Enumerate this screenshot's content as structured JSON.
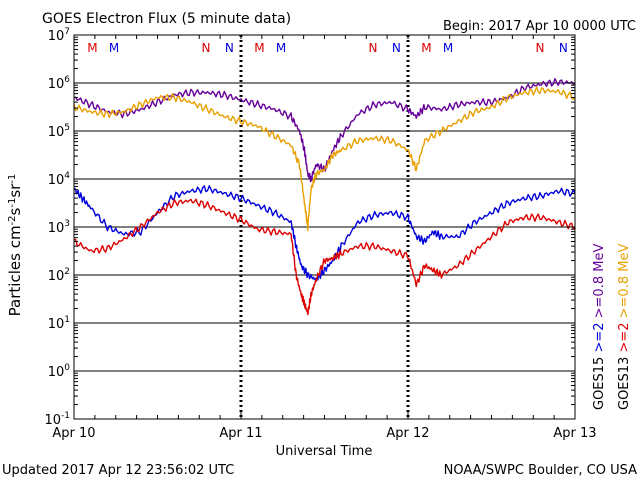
{
  "header": {
    "title": "GOES Electron Flux (5 minute data)",
    "begin": "Begin: 2017 Apr 10 0000 UTC"
  },
  "footer": {
    "updated": "Updated 2017 Apr 12 23:56:02 UTC",
    "credit": "NOAA/SWPC Boulder, CO USA"
  },
  "chart_data": {
    "type": "line",
    "title": "GOES Electron Flux (5 minute data)",
    "xlabel": "Universal Time",
    "ylabel": "Particles cm-2s-1sr-1",
    "y_scale": "log",
    "ylim_exponents": [
      -1,
      7
    ],
    "y_ticks": [
      {
        "base": "10",
        "exp": "7"
      },
      {
        "base": "10",
        "exp": "6"
      },
      {
        "base": "10",
        "exp": "5"
      },
      {
        "base": "10",
        "exp": "4"
      },
      {
        "base": "10",
        "exp": "3"
      },
      {
        "base": "10",
        "exp": "2"
      },
      {
        "base": "10",
        "exp": "1"
      },
      {
        "base": "10",
        "exp": "0"
      },
      {
        "base": "10",
        "exp": "-1"
      }
    ],
    "x_ticks": [
      "Apr 10",
      "Apr 11",
      "Apr 12",
      "Apr 13"
    ],
    "xlim_days": [
      0,
      3
    ],
    "threshold_exponent": 3,
    "grid": "horizontal decades",
    "marker_labels": [
      {
        "text": "M",
        "day": 0.11,
        "color": "#dd0000"
      },
      {
        "text": "M",
        "day": 0.24,
        "color": "#0000dd"
      },
      {
        "text": "N",
        "day": 0.79,
        "color": "#dd0000"
      },
      {
        "text": "N",
        "day": 0.93,
        "color": "#0000dd"
      },
      {
        "text": "M",
        "day": 1.11,
        "color": "#dd0000"
      },
      {
        "text": "M",
        "day": 1.24,
        "color": "#0000dd"
      },
      {
        "text": "N",
        "day": 1.79,
        "color": "#dd0000"
      },
      {
        "text": "N",
        "day": 1.93,
        "color": "#0000dd"
      },
      {
        "text": "M",
        "day": 2.11,
        "color": "#dd0000"
      },
      {
        "text": "M",
        "day": 2.24,
        "color": "#0000dd"
      },
      {
        "text": "N",
        "day": 2.79,
        "color": "#dd0000"
      },
      {
        "text": "N",
        "day": 2.93,
        "color": "#0000dd"
      }
    ],
    "legend": [
      {
        "sat": "GOES15",
        "pair": [
          {
            "text": ">=2",
            "color": "#0000dd"
          },
          {
            "text": ">=0.8 MeV",
            "color": "#660099"
          }
        ]
      },
      {
        "sat": "GOES13",
        "pair": [
          {
            "text": ">=2",
            "color": "#dd0000"
          },
          {
            "text": ">=0.8 MeV",
            "color": "#e8a000"
          }
        ]
      }
    ],
    "series": [
      {
        "name": "GOES15 >=0.8 MeV",
        "color": "#660099",
        "x": [
          0,
          0.1,
          0.2,
          0.3,
          0.4,
          0.5,
          0.6,
          0.7,
          0.8,
          0.9,
          1.0,
          1.1,
          1.2,
          1.3,
          1.35,
          1.38,
          1.4,
          1.42,
          1.45,
          1.5,
          1.55,
          1.6,
          1.7,
          1.8,
          1.9,
          2.0,
          2.05,
          2.1,
          2.2,
          2.3,
          2.4,
          2.5,
          2.6,
          2.7,
          2.8,
          2.9,
          3.0
        ],
        "y": [
          5.7,
          5.55,
          5.4,
          5.35,
          5.45,
          5.6,
          5.75,
          5.8,
          5.8,
          5.75,
          5.65,
          5.55,
          5.45,
          5.3,
          5.0,
          4.6,
          4.1,
          4.0,
          4.3,
          4.2,
          4.6,
          4.9,
          5.35,
          5.55,
          5.6,
          5.45,
          5.3,
          5.5,
          5.45,
          5.55,
          5.6,
          5.6,
          5.7,
          5.9,
          5.98,
          6.02,
          6.0
        ]
      },
      {
        "name": "GOES13 >=0.8 MeV",
        "color": "#e8a000",
        "x": [
          0,
          0.1,
          0.2,
          0.3,
          0.4,
          0.5,
          0.6,
          0.7,
          0.8,
          0.9,
          1.0,
          1.1,
          1.2,
          1.3,
          1.35,
          1.38,
          1.4,
          1.42,
          1.45,
          1.5,
          1.55,
          1.6,
          1.7,
          1.8,
          1.9,
          2.0,
          2.05,
          2.1,
          2.2,
          2.3,
          2.4,
          2.5,
          2.6,
          2.7,
          2.8,
          2.9,
          3.0
        ],
        "y": [
          5.5,
          5.4,
          5.35,
          5.4,
          5.55,
          5.7,
          5.7,
          5.6,
          5.45,
          5.3,
          5.2,
          5.1,
          4.9,
          4.7,
          4.3,
          3.5,
          3.0,
          3.8,
          4.1,
          4.2,
          4.5,
          4.6,
          4.8,
          4.85,
          4.8,
          4.6,
          4.2,
          4.8,
          5.0,
          5.2,
          5.4,
          5.5,
          5.7,
          5.8,
          5.85,
          5.82,
          5.7
        ]
      },
      {
        "name": "GOES15 >=2 MeV",
        "color": "#0000dd",
        "x": [
          0,
          0.05,
          0.1,
          0.2,
          0.3,
          0.4,
          0.5,
          0.6,
          0.7,
          0.8,
          0.9,
          1.0,
          1.1,
          1.2,
          1.3,
          1.33,
          1.36,
          1.4,
          1.45,
          1.5,
          1.55,
          1.6,
          1.7,
          1.8,
          1.9,
          2.0,
          2.05,
          2.1,
          2.15,
          2.2,
          2.3,
          2.4,
          2.5,
          2.6,
          2.7,
          2.8,
          2.9,
          3.0
        ],
        "y": [
          3.8,
          3.6,
          3.4,
          3.0,
          2.85,
          2.9,
          3.3,
          3.65,
          3.75,
          3.8,
          3.7,
          3.6,
          3.45,
          3.3,
          3.1,
          2.6,
          2.2,
          2.0,
          1.9,
          2.1,
          2.3,
          2.6,
          3.1,
          3.25,
          3.3,
          3.2,
          2.8,
          2.7,
          2.9,
          2.8,
          2.8,
          3.1,
          3.3,
          3.5,
          3.6,
          3.65,
          3.75,
          3.7
        ]
      },
      {
        "name": "GOES13 >=2 MeV",
        "color": "#dd0000",
        "x": [
          0,
          0.1,
          0.2,
          0.3,
          0.4,
          0.5,
          0.6,
          0.7,
          0.8,
          0.9,
          1.0,
          1.1,
          1.2,
          1.3,
          1.33,
          1.36,
          1.38,
          1.4,
          1.42,
          1.45,
          1.5,
          1.55,
          1.6,
          1.7,
          1.8,
          1.9,
          2.0,
          2.05,
          2.1,
          2.15,
          2.2,
          2.3,
          2.4,
          2.5,
          2.6,
          2.7,
          2.8,
          2.9,
          3.0
        ],
        "y": [
          2.7,
          2.5,
          2.55,
          2.75,
          3.0,
          3.3,
          3.5,
          3.55,
          3.45,
          3.3,
          3.15,
          2.95,
          2.9,
          2.85,
          2.0,
          1.6,
          1.4,
          1.2,
          1.6,
          1.9,
          2.3,
          2.35,
          2.45,
          2.6,
          2.6,
          2.5,
          2.4,
          1.8,
          2.2,
          2.1,
          2.0,
          2.2,
          2.5,
          2.8,
          3.1,
          3.2,
          3.2,
          3.1,
          3.0
        ]
      }
    ]
  }
}
